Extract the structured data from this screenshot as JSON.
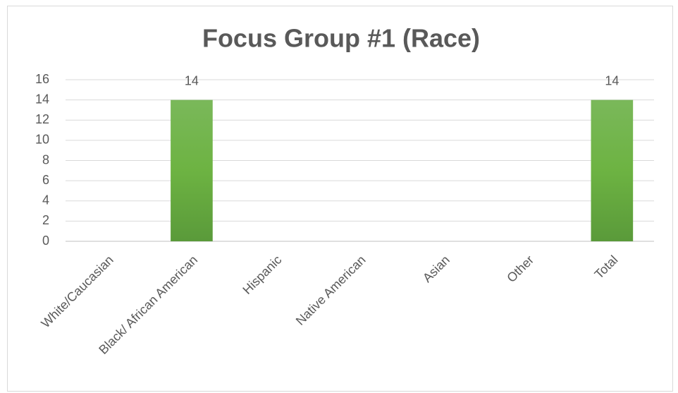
{
  "chart_data": {
    "type": "bar",
    "title": "Focus Group #1 (Race)",
    "categories": [
      "White/Caucasian",
      "Black/ African American",
      "Hispanic",
      "Native American",
      "Asian",
      "Other",
      "Total"
    ],
    "values": [
      0,
      14,
      0,
      0,
      0,
      0,
      14
    ],
    "color": "#70ad47",
    "ylim": [
      0,
      16
    ],
    "yticks": [
      0,
      2,
      4,
      6,
      8,
      10,
      12,
      14,
      16
    ],
    "grid": true
  }
}
